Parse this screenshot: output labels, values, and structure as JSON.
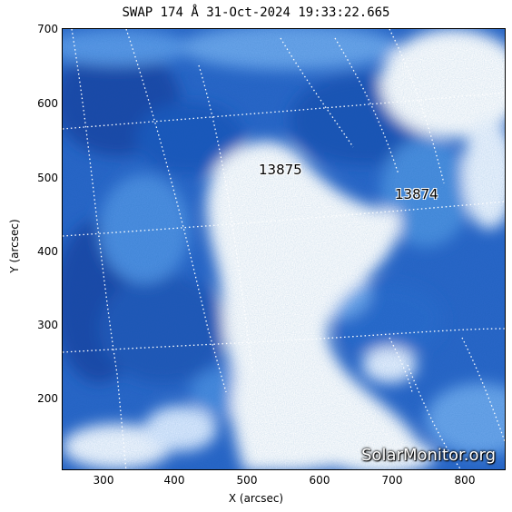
{
  "title": "SWAP 174 Å 31-Oct-2024 19:33:22.665",
  "xaxis": {
    "label": "X (arcsec)",
    "ticks": [
      "300",
      "400",
      "500",
      "600",
      "700",
      "800"
    ]
  },
  "yaxis": {
    "label": "Y (arcsec)",
    "ticks": [
      "200",
      "300",
      "400",
      "500",
      "600",
      "700"
    ]
  },
  "regions": [
    {
      "label": "13875"
    },
    {
      "label": "13874"
    }
  ],
  "watermark": "SolarMonitor.org",
  "colors": {
    "deep": "#1a4fb4",
    "mid": "#3a7fdc",
    "light": "#9cc4f2",
    "white": "#ffffff"
  }
}
